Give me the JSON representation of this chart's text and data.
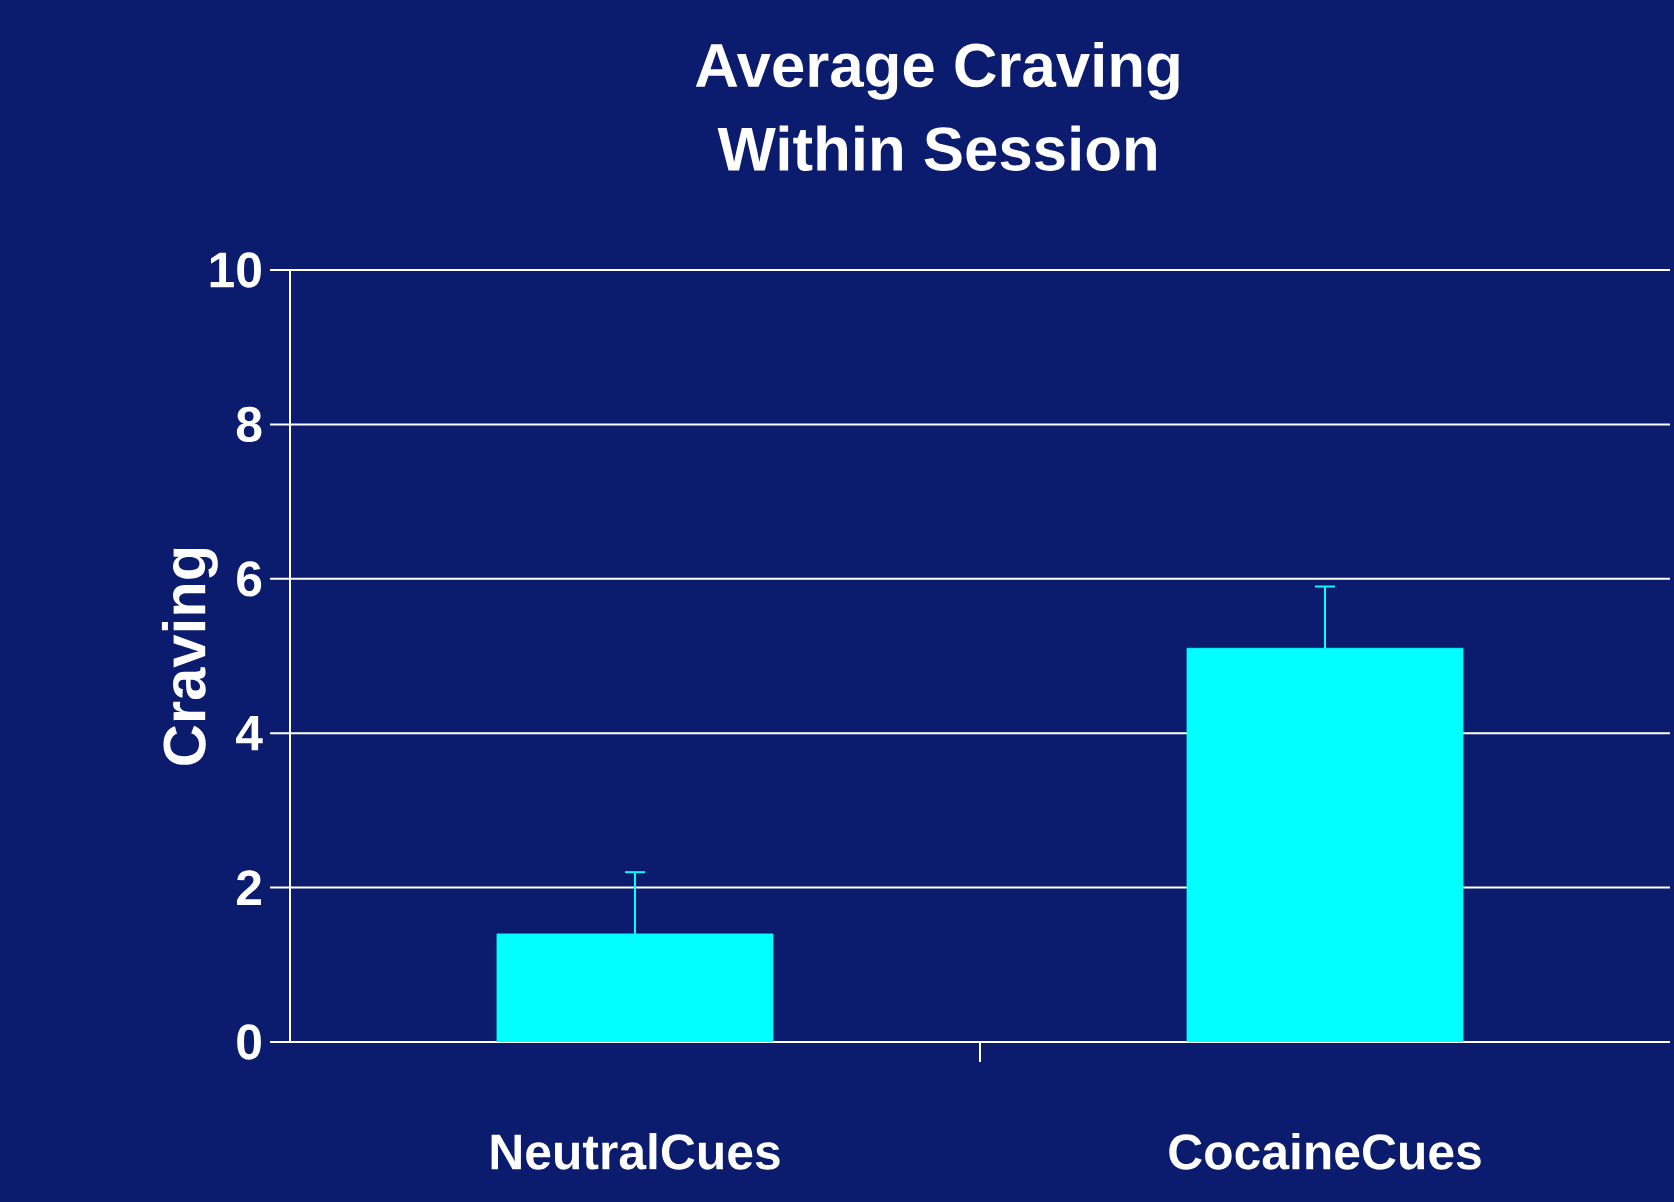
{
  "chart_data": {
    "type": "bar",
    "title": "Average Craving\nWithin Session",
    "ylabel": "Craving",
    "categories": [
      "NeutralCues",
      "CocaineCues"
    ],
    "values": [
      1.4,
      5.1
    ],
    "errors": [
      [
        1.4,
        2.2
      ],
      [
        5.1,
        5.9
      ]
    ],
    "color": "#00ffff",
    "ylim": [
      0,
      10
    ],
    "yticks": [
      0,
      2,
      4,
      6,
      8,
      10
    ],
    "grid": "y"
  }
}
